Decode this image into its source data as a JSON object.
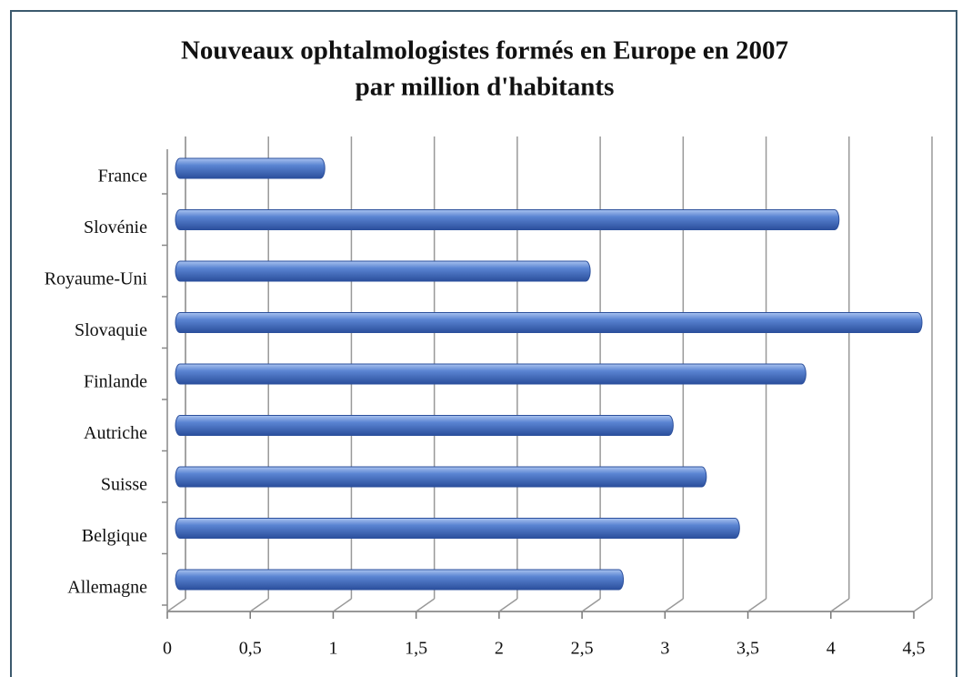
{
  "chart_data": {
    "type": "bar",
    "orientation": "horizontal",
    "title": [
      "Nouveaux ophtalmologistes formés en Europe en 2007",
      "par million d'habitants"
    ],
    "categories": [
      "France",
      "Slovénie",
      "Royaume-Uni",
      "Slovaquie",
      "Finlande",
      "Autriche",
      "Suisse",
      "Belgique",
      "Allemagne"
    ],
    "values": [
      0.9,
      4.0,
      2.5,
      4.5,
      3.8,
      3.0,
      3.2,
      3.4,
      2.7
    ],
    "color": "#4472c4",
    "xlim": [
      0,
      4.5
    ],
    "xticks": [
      0,
      {
        "value": 0.5,
        "label": "0,5"
      },
      1,
      {
        "value": 1.5,
        "label": "1,5"
      },
      2,
      {
        "value": 2.5,
        "label": "2,5"
      },
      3,
      {
        "value": 3.5,
        "label": "3,5"
      },
      4,
      {
        "value": 4.5,
        "label": "4,5"
      }
    ],
    "grid": true
  }
}
